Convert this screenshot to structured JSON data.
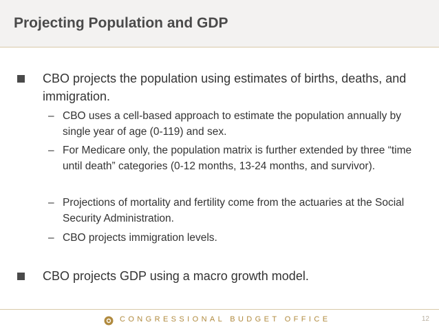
{
  "slide": {
    "title": "Projecting Population and GDP",
    "bullets": [
      {
        "text": "CBO projects the population using estimates of births, deaths, and immigration.",
        "subbullets": [
          "CBO uses a cell-based approach to estimate the population annually by single year of age (0-119) and sex.",
          "For Medicare only, the population matrix is further extended by three “time until death” categories (0-12 months, 13-24 months, and survivor).",
          "Projections of mortality and fertility come from the actuaries at the Social Security Administration.",
          "CBO projects immigration levels."
        ]
      },
      {
        "text": "CBO projects GDP using a macro growth model."
      }
    ],
    "dash": "–"
  },
  "footer": {
    "organization": "CONGRESSIONAL BUDGET OFFICE",
    "page_number": "12",
    "logo_icon": "cbo-seal-icon"
  }
}
